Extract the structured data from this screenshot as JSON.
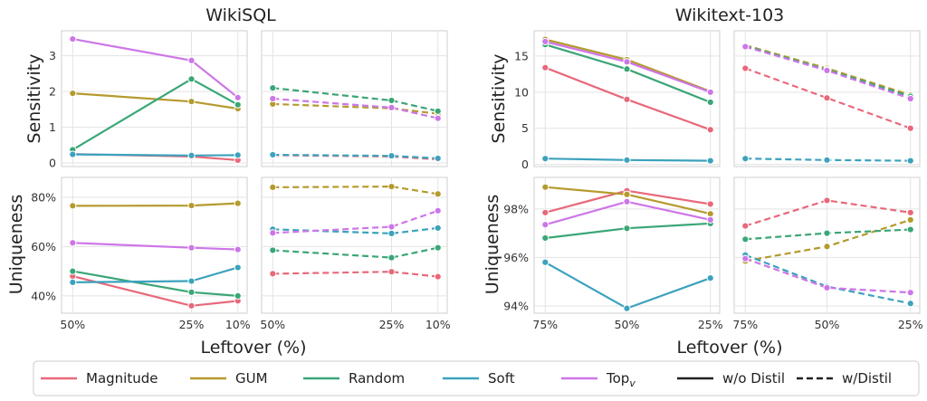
{
  "colors": {
    "Magnitude": "#e8687a",
    "GUM": "#b59a2e",
    "Random": "#3aa676",
    "Soft": "#3ca2bd",
    "Top": "#cd76e8"
  },
  "legend": {
    "items": [
      {
        "key": "Magnitude",
        "label": "Magnitude",
        "style": "solid"
      },
      {
        "key": "GUM",
        "label": "GUM",
        "style": "solid"
      },
      {
        "key": "Random",
        "label": "Random",
        "style": "solid"
      },
      {
        "key": "Soft",
        "label": "Soft",
        "style": "solid"
      },
      {
        "key": "Top",
        "label": "Top",
        "sub": "v",
        "style": "solid"
      },
      {
        "key": "black",
        "label": "w/o Distil",
        "style": "solid"
      },
      {
        "key": "black",
        "label": "w/Distil",
        "style": "dashed"
      }
    ]
  },
  "chart_data": [
    {
      "group": "WikiSQL",
      "title": "WikiSQL",
      "xlabel": "Leftover (%)",
      "x": [
        "50%",
        "25%",
        "10%"
      ],
      "panels": [
        {
          "id": "wikisql-sens-nodistil",
          "ylabel": "Sensitivity",
          "ylim": [
            -0.1,
            3.7
          ],
          "yticks": [
            0,
            1,
            2,
            3
          ],
          "ytick_labels": [
            "0",
            "1",
            "2",
            "3"
          ],
          "style": "solid",
          "series": [
            {
              "key": "Magnitude",
              "values": [
                0.25,
                0.18,
                0.08
              ]
            },
            {
              "key": "GUM",
              "values": [
                1.95,
                1.72,
                1.52
              ]
            },
            {
              "key": "Random",
              "values": [
                0.37,
                2.35,
                1.63
              ]
            },
            {
              "key": "Soft",
              "values": [
                0.24,
                0.21,
                0.22
              ]
            },
            {
              "key": "Top",
              "values": [
                3.47,
                2.87,
                1.83
              ]
            }
          ]
        },
        {
          "id": "wikisql-sens-distil",
          "ylabel": "",
          "ylim": [
            -0.1,
            3.7
          ],
          "yticks": [
            0,
            1,
            2,
            3
          ],
          "ytick_labels": [],
          "style": "dashed",
          "series": [
            {
              "key": "Magnitude",
              "values": [
                0.22,
                0.18,
                0.1
              ]
            },
            {
              "key": "GUM",
              "values": [
                1.65,
                1.53,
                1.38
              ]
            },
            {
              "key": "Random",
              "values": [
                2.1,
                1.75,
                1.45
              ]
            },
            {
              "key": "Soft",
              "values": [
                0.23,
                0.2,
                0.13
              ]
            },
            {
              "key": "Top",
              "values": [
                1.8,
                1.55,
                1.25
              ]
            }
          ]
        },
        {
          "id": "wikisql-uniq-nodistil",
          "ylabel": "Uniqueness",
          "ylim": [
            33,
            88
          ],
          "yticks": [
            40,
            60,
            80
          ],
          "ytick_labels": [
            "40%",
            "60%",
            "80%"
          ],
          "style": "solid",
          "series": [
            {
              "key": "Magnitude",
              "values": [
                48,
                36,
                38
              ]
            },
            {
              "key": "GUM",
              "values": [
                76.5,
                76.6,
                77.5
              ]
            },
            {
              "key": "Random",
              "values": [
                50,
                41.5,
                40
              ]
            },
            {
              "key": "Soft",
              "values": [
                45.5,
                46,
                51.5
              ]
            },
            {
              "key": "Top",
              "values": [
                61.5,
                59.5,
                58.8
              ]
            }
          ]
        },
        {
          "id": "wikisql-uniq-distil",
          "ylabel": "",
          "ylim": [
            33,
            88
          ],
          "yticks": [
            40,
            60,
            80
          ],
          "ytick_labels": [],
          "style": "dashed",
          "series": [
            {
              "key": "Magnitude",
              "values": [
                49,
                49.8,
                47.8
              ]
            },
            {
              "key": "GUM",
              "values": [
                84,
                84.3,
                81.3
              ]
            },
            {
              "key": "Random",
              "values": [
                58.5,
                55.5,
                59.5
              ]
            },
            {
              "key": "Soft",
              "values": [
                67,
                65.3,
                67.5
              ]
            },
            {
              "key": "Top",
              "values": [
                65.5,
                68,
                74.5
              ]
            }
          ]
        }
      ]
    },
    {
      "group": "Wikitext-103",
      "title": "Wikitext-103",
      "xlabel": "Leftover (%)",
      "x": [
        "75%",
        "50%",
        "25%"
      ],
      "panels": [
        {
          "id": "wikitext-sens-nodistil",
          "ylabel": "Sensitivity",
          "ylim": [
            -0.3,
            18.5
          ],
          "yticks": [
            0,
            5,
            10,
            15
          ],
          "ytick_labels": [
            "0",
            "5",
            "10",
            "15"
          ],
          "style": "solid",
          "series": [
            {
              "key": "Magnitude",
              "values": [
                13.4,
                9.0,
                4.8
              ]
            },
            {
              "key": "GUM",
              "values": [
                17.3,
                14.5,
                10.1
              ]
            },
            {
              "key": "Random",
              "values": [
                16.6,
                13.2,
                8.6
              ]
            },
            {
              "key": "Soft",
              "values": [
                0.8,
                0.6,
                0.5
              ]
            },
            {
              "key": "Top",
              "values": [
                17.0,
                14.2,
                10.0
              ]
            }
          ]
        },
        {
          "id": "wikitext-sens-distil",
          "ylabel": "",
          "ylim": [
            -0.3,
            18.5
          ],
          "yticks": [
            0,
            5,
            10,
            15
          ],
          "ytick_labels": [],
          "style": "dashed",
          "series": [
            {
              "key": "Magnitude",
              "values": [
                13.3,
                9.2,
                5.0
              ]
            },
            {
              "key": "GUM",
              "values": [
                16.5,
                13.3,
                9.6
              ]
            },
            {
              "key": "Random",
              "values": [
                16.4,
                13.1,
                9.4
              ]
            },
            {
              "key": "Soft",
              "values": [
                0.8,
                0.6,
                0.5
              ]
            },
            {
              "key": "Top",
              "values": [
                16.3,
                13.0,
                9.1
              ]
            }
          ]
        },
        {
          "id": "wikitext-uniq-nodistil",
          "ylabel": "Uniqueness",
          "ylim": [
            93.7,
            99.3
          ],
          "yticks": [
            94,
            96,
            98
          ],
          "ytick_labels": [
            "94%",
            "96%",
            "98%"
          ],
          "style": "solid",
          "series": [
            {
              "key": "Magnitude",
              "values": [
                97.85,
                98.75,
                98.2
              ]
            },
            {
              "key": "GUM",
              "values": [
                98.9,
                98.6,
                97.8
              ]
            },
            {
              "key": "Random",
              "values": [
                96.8,
                97.2,
                97.4
              ]
            },
            {
              "key": "Soft",
              "values": [
                95.8,
                93.9,
                95.15
              ]
            },
            {
              "key": "Top",
              "values": [
                97.35,
                98.3,
                97.55
              ]
            }
          ]
        },
        {
          "id": "wikitext-uniq-distil",
          "ylabel": "",
          "ylim": [
            93.7,
            99.3
          ],
          "yticks": [
            94,
            96,
            98
          ],
          "ytick_labels": [],
          "style": "dashed",
          "series": [
            {
              "key": "Magnitude",
              "values": [
                97.3,
                98.35,
                97.85
              ]
            },
            {
              "key": "GUM",
              "values": [
                95.85,
                96.45,
                97.55
              ]
            },
            {
              "key": "Random",
              "values": [
                96.75,
                97.0,
                97.15
              ]
            },
            {
              "key": "Soft",
              "values": [
                96.1,
                94.8,
                94.1
              ]
            },
            {
              "key": "Top",
              "values": [
                95.95,
                94.75,
                94.55
              ]
            }
          ]
        }
      ]
    }
  ]
}
